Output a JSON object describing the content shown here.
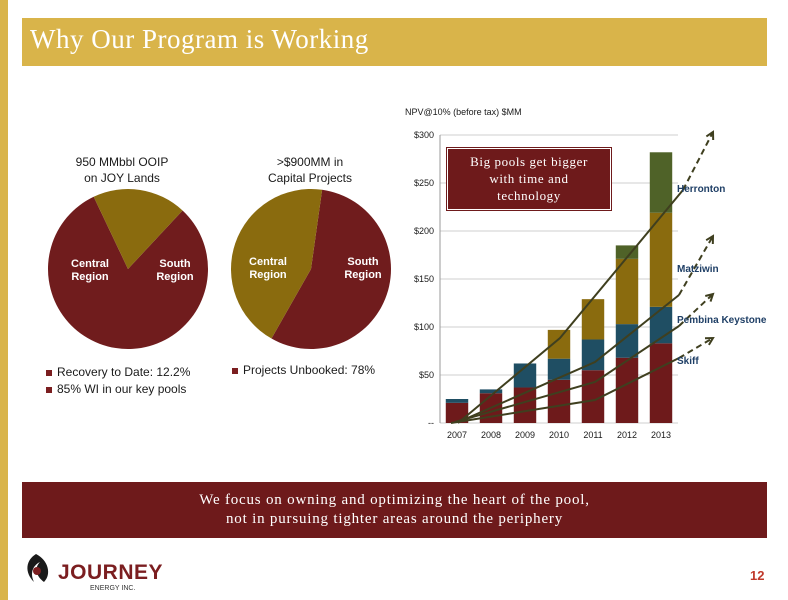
{
  "slide": {
    "title": "Why Our Program is Working",
    "page_number": "12",
    "colors": {
      "accent_gold": "#d9b44a",
      "maroon": "#7b1e20",
      "olive_gold": "#8a6b0e"
    }
  },
  "pie_left": {
    "title_line1": "950 MMbbl OOIP",
    "title_line2": "on JOY Lands",
    "slices": [
      {
        "label_line1": "Central",
        "label_line2": "Region",
        "fraction": 0.81,
        "color": "#701c1d"
      },
      {
        "label_line1": "South",
        "label_line2": "Region",
        "fraction": 0.19,
        "color": "#8a6b0e"
      }
    ],
    "legend": [
      "Recovery to Date: 12.2%",
      "85% WI in our key pools"
    ]
  },
  "pie_right": {
    "title_line1": ">$900MM in",
    "title_line2": "Capital Projects",
    "slices": [
      {
        "label_line1": "Central",
        "label_line2": "Region",
        "fraction": 0.56,
        "color": "#701c1d"
      },
      {
        "label_line1": "South",
        "label_line2": "Region",
        "fraction": 0.44,
        "color": "#8a6b0e"
      }
    ],
    "legend": [
      "Projects Unbooked: 78%"
    ]
  },
  "callout": {
    "line1": "Big pools get bigger",
    "line2": "with time and",
    "line3": "technology"
  },
  "chart_data": {
    "type": "bar",
    "stacked": true,
    "ylabel": "NPV@10% (before tax) $MM",
    "ylim": [
      0,
      300
    ],
    "yticks": [
      "--",
      "$50",
      "$100",
      "$150",
      "$200",
      "$250",
      "$300"
    ],
    "categories": [
      "2007",
      "2008",
      "2009",
      "2010",
      "2011",
      "2012",
      "2013"
    ],
    "series": [
      {
        "name": "Skiff",
        "color": "#6e1a1b",
        "values": [
          21,
          31,
          37,
          45,
          55,
          68,
          83
        ]
      },
      {
        "name": "Pembina Keystone",
        "color": "#1f4e63",
        "values": [
          4,
          4,
          25,
          22,
          32,
          35,
          38
        ]
      },
      {
        "name": "Matzwiwin",
        "color": "#8a6b0e",
        "values": [
          0,
          0,
          0,
          30,
          42,
          68,
          98
        ]
      },
      {
        "name": "Herronton",
        "color": "#4f6228",
        "values": [
          0,
          0,
          0,
          0,
          0,
          14,
          63
        ]
      }
    ],
    "series_labels": [
      "Herronton",
      "Matziwin",
      "Pembina Keystone",
      "Skiff"
    ],
    "grid": true
  },
  "footer": {
    "line1": "We focus on owning and optimizing the heart of the pool,",
    "line2": "not in pursuing tighter areas around the periphery"
  },
  "logo": {
    "word": "JOURNEY",
    "sub": "ENERGY INC."
  }
}
